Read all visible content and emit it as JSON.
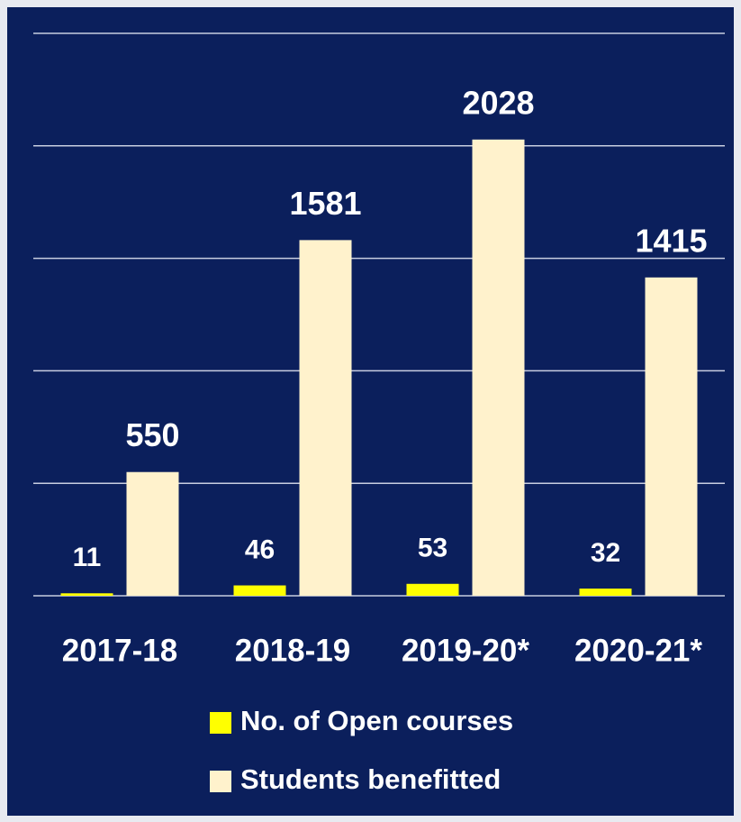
{
  "chart_data": {
    "type": "bar",
    "categories": [
      "2017-18",
      "2018-19",
      "2019-20*",
      "2020-21*"
    ],
    "series": [
      {
        "name": "No. of Open courses",
        "color": "#ffff00",
        "values": [
          11,
          46,
          53,
          32
        ]
      },
      {
        "name": "Students benefitted",
        "color": "#fff2cc",
        "values": [
          550,
          1581,
          2028,
          1415
        ]
      }
    ],
    "ylim": [
      0,
      2500
    ],
    "yticks": [
      0,
      500,
      1000,
      1500,
      2000,
      2500
    ],
    "grid": true,
    "background": "#0b1f5c"
  }
}
